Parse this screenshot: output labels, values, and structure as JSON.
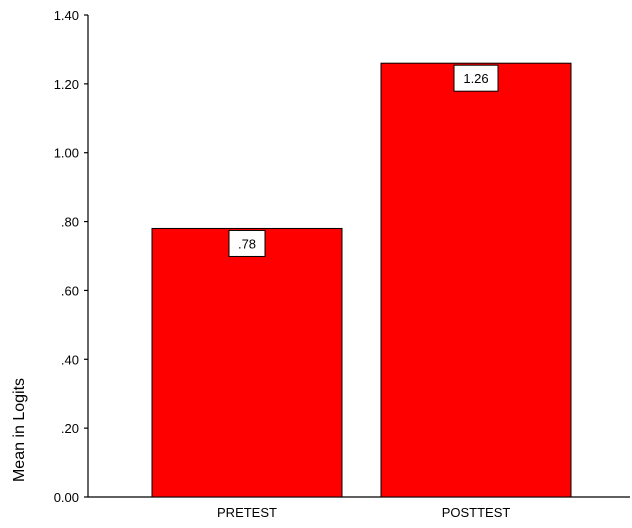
{
  "chart_data": {
    "type": "bar",
    "title": "",
    "xlabel": "",
    "ylabel": "Mean in Logits",
    "categories": [
      "PRETEST",
      "POSTTEST"
    ],
    "values": [
      0.78,
      1.26
    ],
    "value_labels": [
      ".78",
      "1.26"
    ],
    "ylim": [
      0,
      1.4
    ],
    "yticks": [
      0,
      0.2,
      0.4,
      0.6,
      0.8,
      1.0,
      1.2,
      1.4
    ],
    "ytick_labels": [
      "0.00",
      ".20",
      ".40",
      ".60",
      ".80",
      "1.00",
      "1.20",
      "1.40"
    ],
    "grid": false,
    "legend": "none",
    "bar_color": "#ff0000",
    "bar_edge_color": "#000000"
  }
}
